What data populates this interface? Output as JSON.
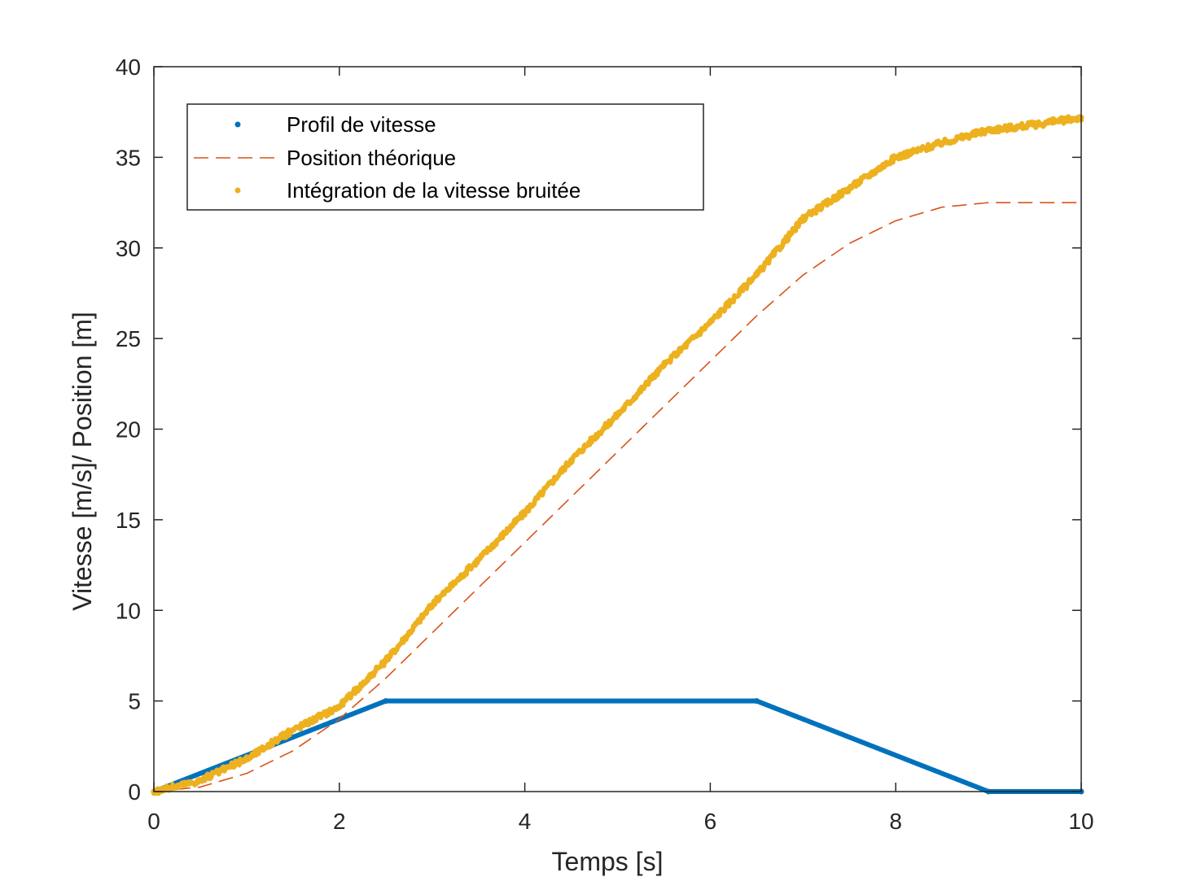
{
  "chart_data": {
    "type": "line",
    "title": "",
    "xlabel": "Temps [s]",
    "ylabel": "Vitesse [m/s]/ Position [m]",
    "xlim": [
      0,
      10
    ],
    "ylim": [
      0,
      40
    ],
    "xticks": [
      0,
      2,
      4,
      6,
      8,
      10
    ],
    "yticks": [
      0,
      5,
      10,
      15,
      20,
      25,
      30,
      35,
      40
    ],
    "grid": false,
    "legend_position": "top-left",
    "series": [
      {
        "name": "Profil de vitesse",
        "color": "#0072BD",
        "style": "dots",
        "x": [
          0,
          2.5,
          6.5,
          9,
          10
        ],
        "y": [
          0,
          5,
          5,
          0,
          0
        ]
      },
      {
        "name": "Position théorique",
        "color": "#D95319",
        "style": "dashed",
        "x": [
          0,
          0.5,
          1,
          1.5,
          2,
          2.5,
          3,
          3.5,
          4,
          4.5,
          5,
          5.5,
          6,
          6.5,
          7,
          7.5,
          8,
          8.5,
          9,
          9.5,
          10
        ],
        "y": [
          0,
          0.25,
          1,
          2.25,
          4,
          6.25,
          8.75,
          11.25,
          13.75,
          16.25,
          18.75,
          21.25,
          23.75,
          26.25,
          28.5,
          30.25,
          31.5,
          32.25,
          32.5,
          32.5,
          32.5
        ]
      },
      {
        "name": "Intégration de la vitesse bruitée",
        "color": "#EDB120",
        "style": "dots",
        "x": [
          0,
          0.5,
          1,
          1.5,
          2,
          2.5,
          3,
          3.5,
          4,
          4.5,
          5,
          5.5,
          6,
          6.5,
          7,
          7.5,
          8,
          8.5,
          9,
          9.5,
          10
        ],
        "y": [
          0,
          0.6,
          1.8,
          3.4,
          4.7,
          7.2,
          10.3,
          12.8,
          15.4,
          18.3,
          20.8,
          23.5,
          25.9,
          28.5,
          31.6,
          33.3,
          35.0,
          35.8,
          36.5,
          36.8,
          37.2
        ]
      }
    ]
  }
}
